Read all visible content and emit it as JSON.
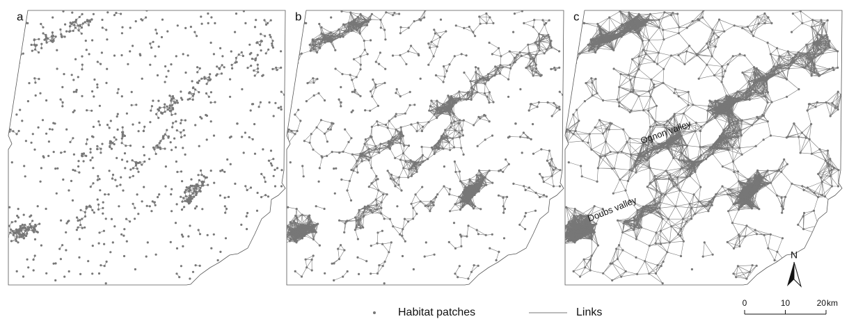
{
  "panels": [
    {
      "label": "a"
    },
    {
      "label": "b"
    },
    {
      "label": "c"
    }
  ],
  "annotations": [
    "Ognon valley",
    "Doubs valley"
  ],
  "north_arrow": "N",
  "legend": [
    "Habitat patches",
    "Links"
  ],
  "scale_bar": {
    "ticks": [
      0,
      10,
      20
    ],
    "unit": "km"
  }
}
